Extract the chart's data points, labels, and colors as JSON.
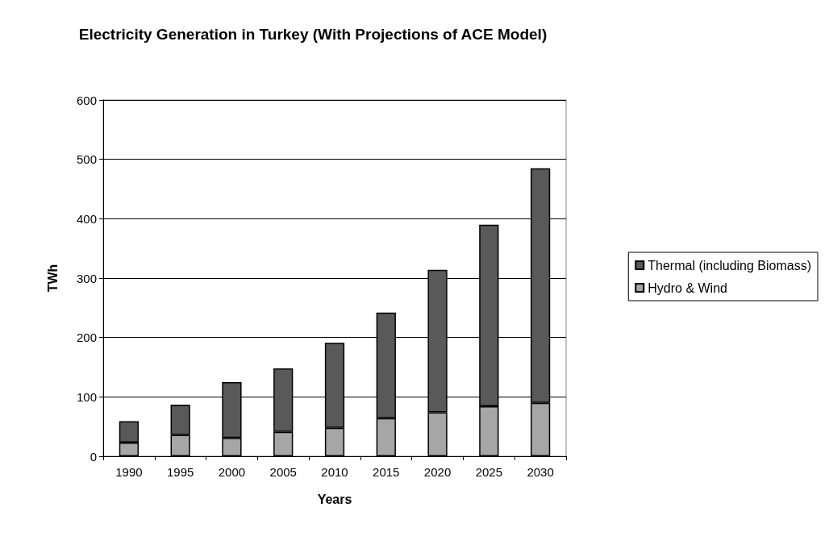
{
  "chart_data": {
    "type": "bar",
    "title": "Electricity Generation in Turkey (With Projections of ACE Model)",
    "xlabel": "Years",
    "ylabel": "TWh",
    "categories": [
      "1990",
      "1995",
      "2000",
      "2005",
      "2010",
      "2015",
      "2020",
      "2025",
      "2030"
    ],
    "stacked": true,
    "series": [
      {
        "name": "Hydro & Wind",
        "color": "#a6a6a6",
        "values": [
          23,
          36,
          31,
          41,
          48,
          64,
          74,
          84,
          90
        ]
      },
      {
        "name": "Thermal (including Biomass)",
        "color": "#595959",
        "values": [
          36,
          51,
          94,
          107,
          143,
          178,
          240,
          306,
          395
        ]
      }
    ],
    "ylim": [
      0,
      600
    ],
    "yticks": [
      0,
      100,
      200,
      300,
      400,
      500,
      600
    ],
    "grid": "y",
    "legend": "right"
  }
}
